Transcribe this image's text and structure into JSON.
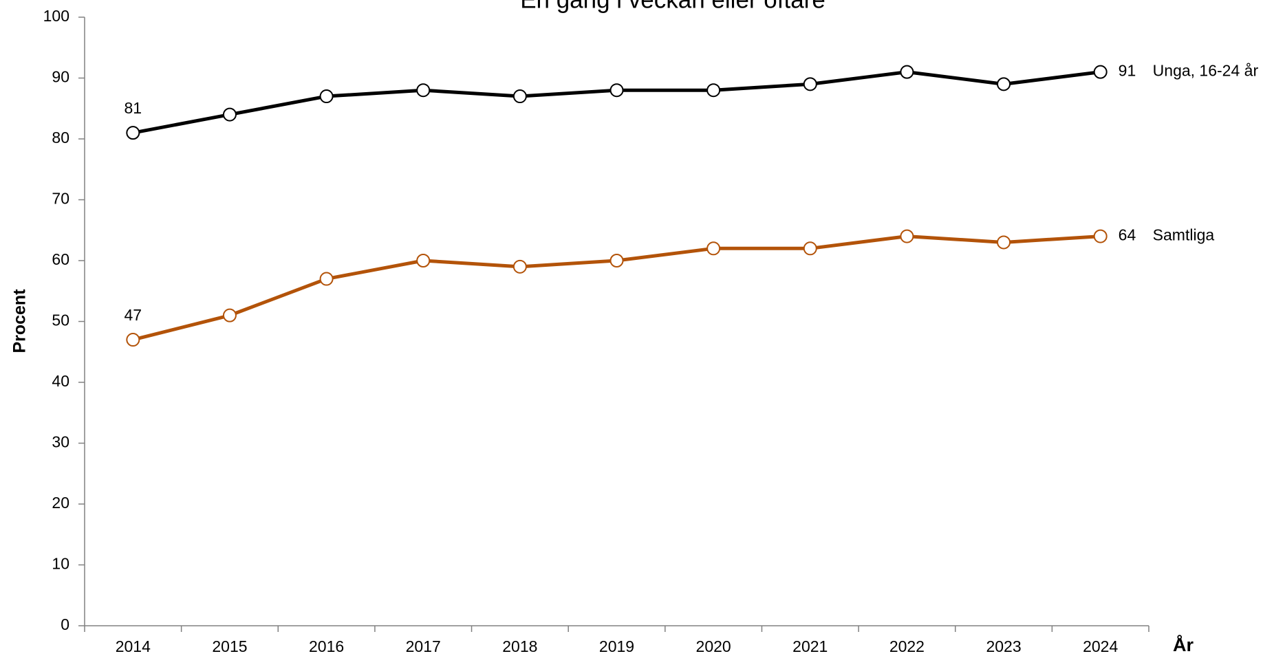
{
  "chart_data": {
    "type": "line",
    "title": "En gång i veckan eller oftare",
    "x_label": "År",
    "y_label": "Procent",
    "categories": [
      "2014",
      "2015",
      "2016",
      "2017",
      "2018",
      "2019",
      "2020",
      "2021",
      "2022",
      "2023",
      "2024"
    ],
    "series": [
      {
        "name": "Unga, 16-24 år",
        "color": "#000000",
        "values": [
          81,
          84,
          87,
          88,
          87,
          88,
          88,
          89,
          91,
          89,
          91
        ]
      },
      {
        "name": "Samtliga",
        "color": "#b35309",
        "values": [
          47,
          51,
          57,
          60,
          59,
          60,
          62,
          62,
          64,
          63,
          64
        ]
      }
    ],
    "ylim": [
      0,
      100
    ],
    "yticks": [
      0,
      10,
      20,
      30,
      40,
      50,
      60,
      70,
      80,
      90,
      100
    ],
    "grid": false
  }
}
